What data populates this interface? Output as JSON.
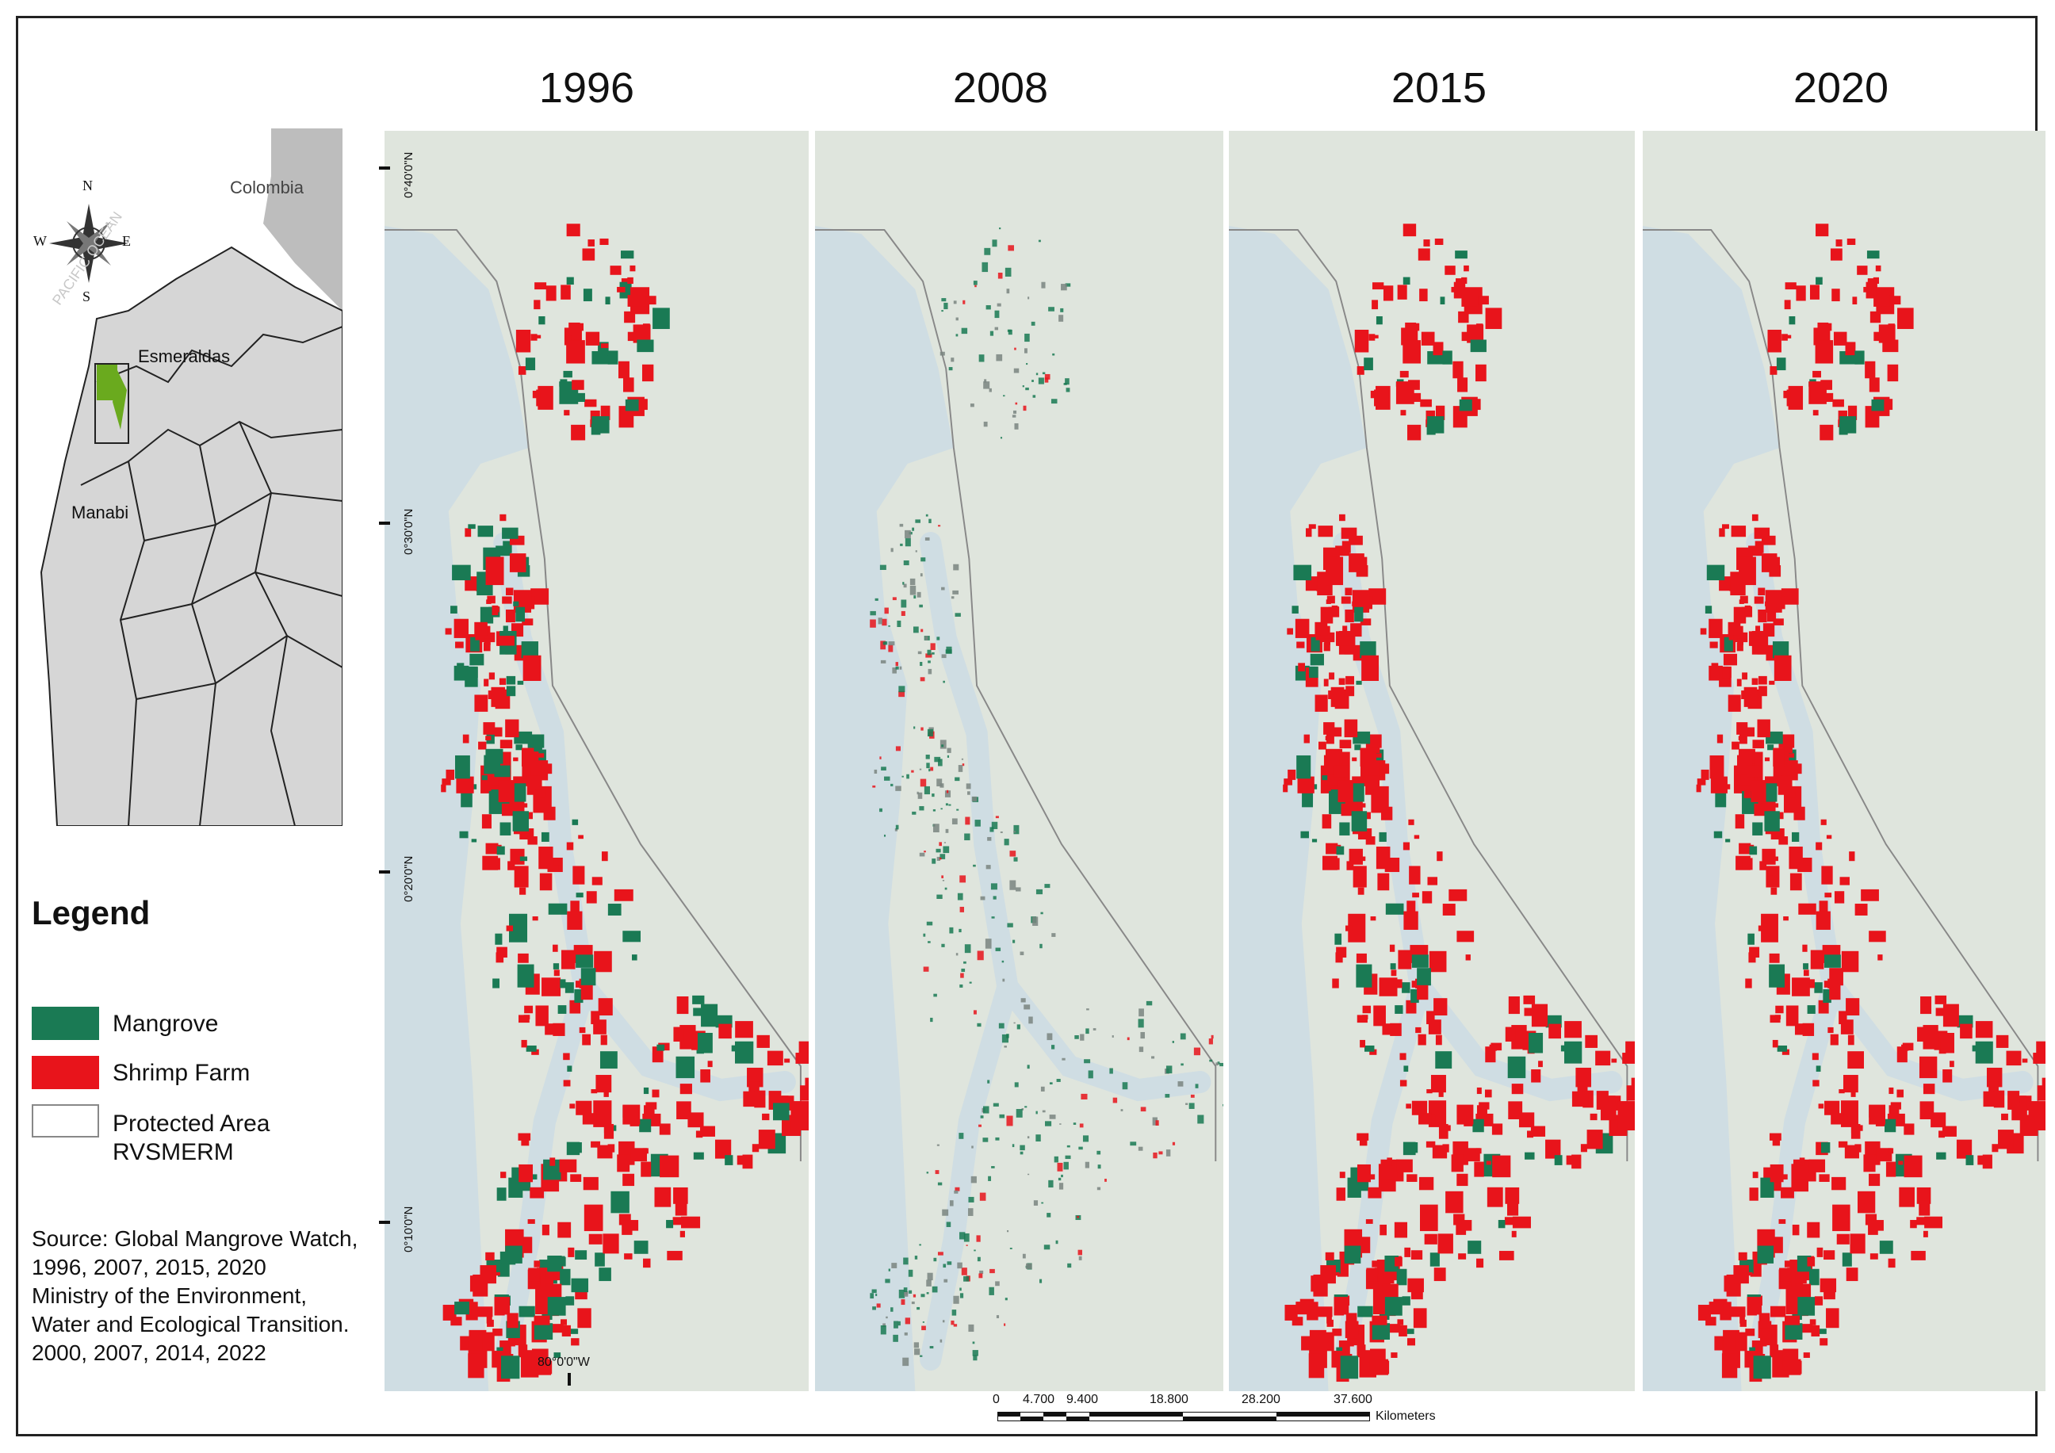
{
  "years": [
    "1996",
    "2008",
    "2015",
    "2020"
  ],
  "inset": {
    "labels": {
      "colombia": "Colombia",
      "esmeraldas": "Esmeraldas",
      "manabi": "Manabi",
      "pacific": "PACIFIC OCEAN"
    },
    "compass": {
      "n": "N",
      "s": "S",
      "e": "E",
      "w": "W"
    }
  },
  "latitude_labels": [
    "0°40'0\"N",
    "0°30'0\"N",
    "0°20'0\"N",
    "0°10'0\"N"
  ],
  "longitude_label": "80°0'0\"W",
  "legend": {
    "title": "Legend",
    "items": [
      {
        "label": "Mangrove",
        "color": "#1a7a54"
      },
      {
        "label": "Shrimp Farm",
        "color": "#e8141b"
      },
      {
        "label": "Protected Area\nRVSMERM",
        "color": "#ffffff"
      }
    ]
  },
  "source": {
    "line1": "Source: Global Mangrove Watch,",
    "line2": "1996, 2007, 2015, 2020",
    "line3": "Ministry of the Environment, Water and Ecological Transition.",
    "line4": "2000, 2007, 2014, 2022"
  },
  "scale_bar": {
    "ticks": [
      "0",
      "4.700",
      "9.400",
      "18.800",
      "28.200",
      "37.600"
    ],
    "unit": "Kilometers"
  },
  "colors": {
    "mangrove": "#1a7a54",
    "shrimp": "#e8141b",
    "land": "#dfe5dd",
    "water": "#cfdde3",
    "inset_land": "#d6d6d6",
    "highlight": "#6aaa1e"
  }
}
